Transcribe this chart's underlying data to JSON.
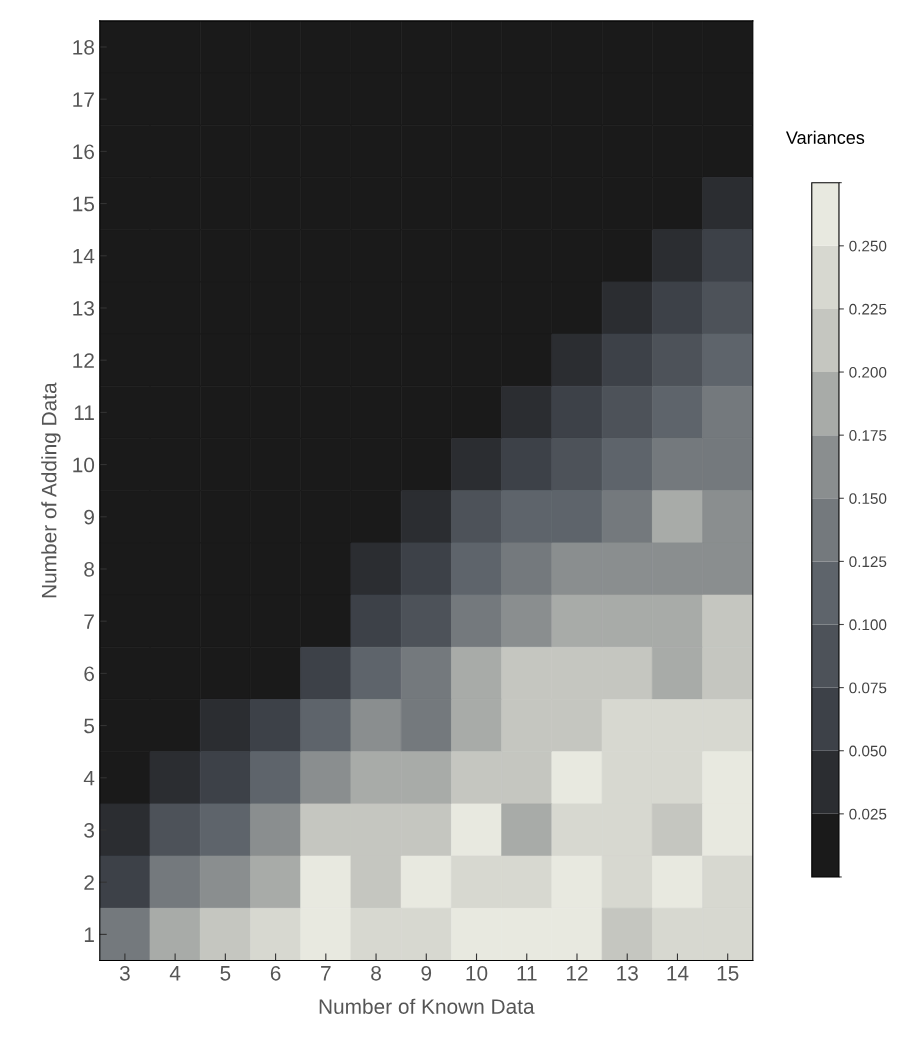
{
  "chart_data": {
    "type": "heatmap",
    "xlabel": "Number of Known Data",
    "ylabel": "Number of Adding Data",
    "clabel": "Variances",
    "categories": [
      "3",
      "4",
      "5",
      "6",
      "7",
      "8",
      "9",
      "10",
      "11",
      "12",
      "13",
      "14",
      "15"
    ],
    "y_categories": [
      "18",
      "17",
      "16",
      "15",
      "14",
      "13",
      "12",
      "11",
      "10",
      "9",
      "8",
      "7",
      "6",
      "5",
      "4",
      "3",
      "2",
      "1"
    ],
    "cells": [
      [
        0,
        0,
        0,
        0,
        0,
        0,
        0,
        0,
        0,
        0,
        0,
        0,
        0
      ],
      [
        0,
        0,
        0,
        0,
        0,
        0,
        0,
        0,
        0,
        0,
        0,
        0,
        0
      ],
      [
        0,
        0,
        0,
        0,
        0,
        0,
        0,
        0,
        0,
        0,
        0,
        0,
        0.02
      ],
      [
        0,
        0,
        0,
        0,
        0,
        0,
        0,
        0,
        0,
        0,
        0,
        0.02,
        0.04
      ],
      [
        0,
        0,
        0,
        0,
        0,
        0,
        0,
        0,
        0,
        0,
        0.02,
        0.04,
        0.06
      ],
      [
        0,
        0,
        0,
        0,
        0,
        0,
        0,
        0,
        0,
        0.01,
        0.04,
        0.06,
        0.08
      ],
      [
        0,
        0,
        0,
        0,
        0,
        0,
        0,
        0,
        0.01,
        0.03,
        0.06,
        0.09,
        0.11
      ],
      [
        0,
        0,
        0,
        0,
        0,
        0,
        0,
        0.01,
        0.04,
        0.06,
        0.09,
        0.11,
        0.13
      ],
      [
        0,
        0,
        0,
        0,
        0,
        0,
        0.01,
        0.04,
        0.07,
        0.09,
        0.12,
        0.14,
        0.14
      ],
      [
        0,
        0,
        0,
        0,
        0,
        0.01,
        0.03,
        0.08,
        0.1,
        0.12,
        0.14,
        0.19,
        0.16
      ],
      [
        0,
        0,
        0,
        0,
        0,
        0.03,
        0.06,
        0.11,
        0.14,
        0.15,
        0.16,
        0.17,
        0.17
      ],
      [
        0,
        0,
        0,
        0,
        0.02,
        0.06,
        0.09,
        0.14,
        0.17,
        0.19,
        0.19,
        0.19,
        0.21
      ],
      [
        0,
        0,
        0.01,
        0.02,
        0.07,
        0.1,
        0.13,
        0.19,
        0.2,
        0.21,
        0.21,
        0.19,
        0.22
      ],
      [
        0,
        0.015,
        0.03,
        0.06,
        0.12,
        0.15,
        0.13,
        0.19,
        0.21,
        0.22,
        0.23,
        0.23,
        0.24
      ],
      [
        0.02,
        0.04,
        0.07,
        0.11,
        0.17,
        0.19,
        0.19,
        0.22,
        0.22,
        0.26,
        0.23,
        0.24,
        0.25
      ],
      [
        0.04,
        0.08,
        0.12,
        0.16,
        0.21,
        0.21,
        0.22,
        0.25,
        0.19,
        0.23,
        0.24,
        0.21,
        0.26
      ],
      [
        0.07,
        0.13,
        0.17,
        0.19,
        0.26,
        0.22,
        0.26,
        0.23,
        0.24,
        0.26,
        0.23,
        0.26,
        0.24
      ],
      [
        0.14,
        0.19,
        0.21,
        0.23,
        0.26,
        0.24,
        0.23,
        0.26,
        0.26,
        0.26,
        0.22,
        0.24,
        0.24
      ]
    ],
    "clim": [
      0,
      0.275
    ],
    "cticks": [
      0.025,
      {
        "value": 0.05,
        "label": "0.050"
      },
      0.075,
      {
        "value": 0.1,
        "label": "0.100"
      },
      0.125,
      {
        "value": 0.15,
        "label": "0.150"
      },
      0.175,
      {
        "value": 0.2,
        "label": "0.200"
      },
      0.225,
      {
        "value": 0.25,
        "label": "0.250"
      }
    ]
  }
}
